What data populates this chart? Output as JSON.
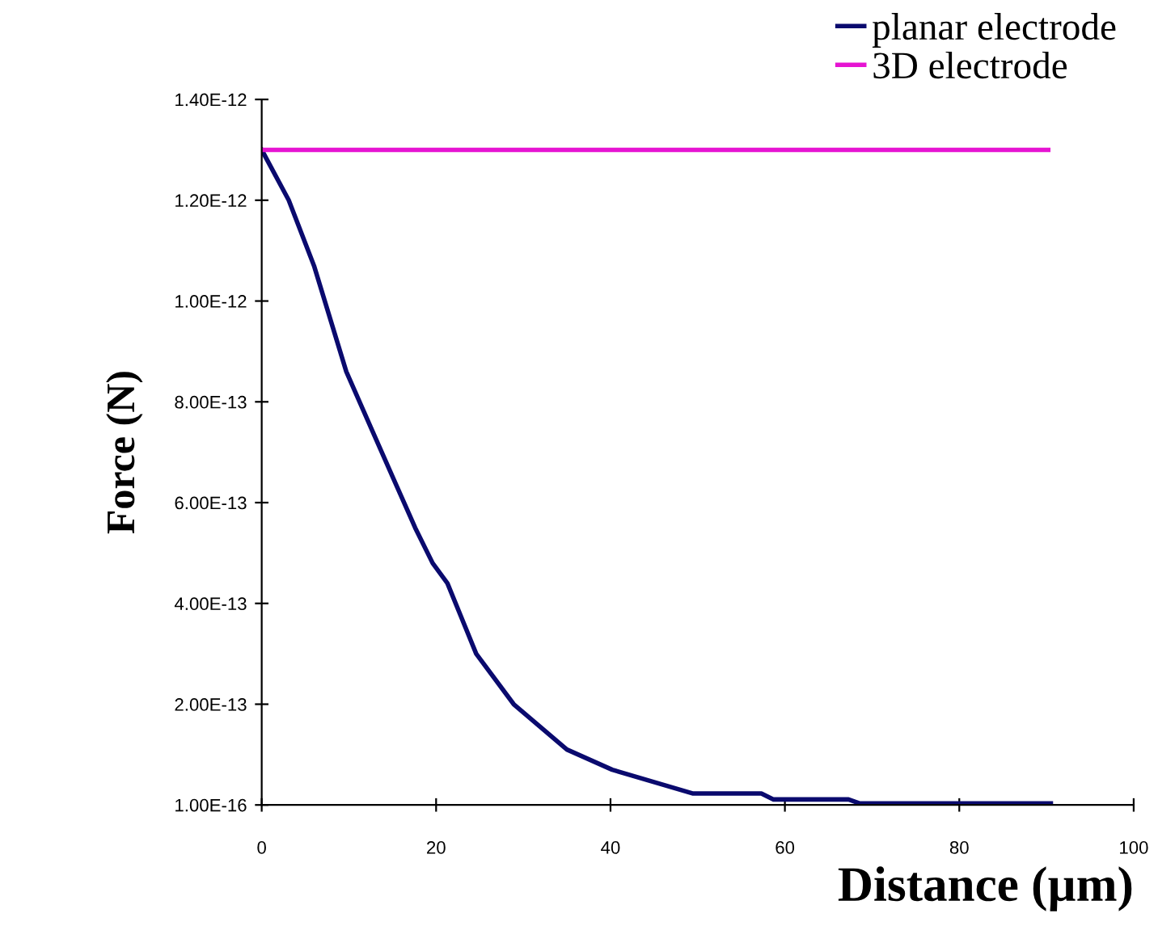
{
  "chart_data": {
    "type": "line",
    "xlabel": "Distance (µm)",
    "ylabel": "Force (N)",
    "xlim": [
      0,
      100
    ],
    "xticks": [
      0,
      20,
      40,
      60,
      80,
      100
    ],
    "ylim": [
      1e-16,
      1.4e-12
    ],
    "yticks": [
      {
        "value": 1e-16,
        "label": "1.00E-16"
      },
      {
        "value": 2e-13,
        "label": "2.00E-13"
      },
      {
        "value": 4e-13,
        "label": "4.00E-13"
      },
      {
        "value": 6e-13,
        "label": "6.00E-13"
      },
      {
        "value": 8e-13,
        "label": "8.00E-13"
      },
      {
        "value": 1e-12,
        "label": "1.00E-12"
      },
      {
        "value": 1.2e-12,
        "label": "1.20E-12"
      },
      {
        "value": 1.4e-12,
        "label": "1.40E-12"
      }
    ],
    "series": [
      {
        "name": "planar electrode",
        "color": "#0a0a6e",
        "x": [
          0,
          3.1,
          6.0,
          9.7,
          13.0,
          15.3,
          17.6,
          19.6,
          21.3,
          24.6,
          28.9,
          35.0,
          40.2,
          49.4,
          57.3,
          58.7,
          67.3,
          68.6,
          90.5
        ],
        "values": [
          1.3e-12,
          1.2e-12,
          1.07e-12,
          8.6e-13,
          7.3e-13,
          6.4e-13,
          5.5e-13,
          4.8e-13,
          4.4e-13,
          3e-13,
          2e-13,
          1.1e-13,
          7e-14,
          2.3e-14,
          2.3e-14,
          1.1e-14,
          1.1e-14,
          3e-15,
          3e-15
        ]
      },
      {
        "name": "3D electrode",
        "color": "#e614d2",
        "x": [
          0,
          90.2
        ],
        "values": [
          1.3e-12,
          1.3e-12
        ]
      }
    ],
    "legend": "top right",
    "grid": false,
    "marker": "none",
    "line_style": "solid"
  }
}
